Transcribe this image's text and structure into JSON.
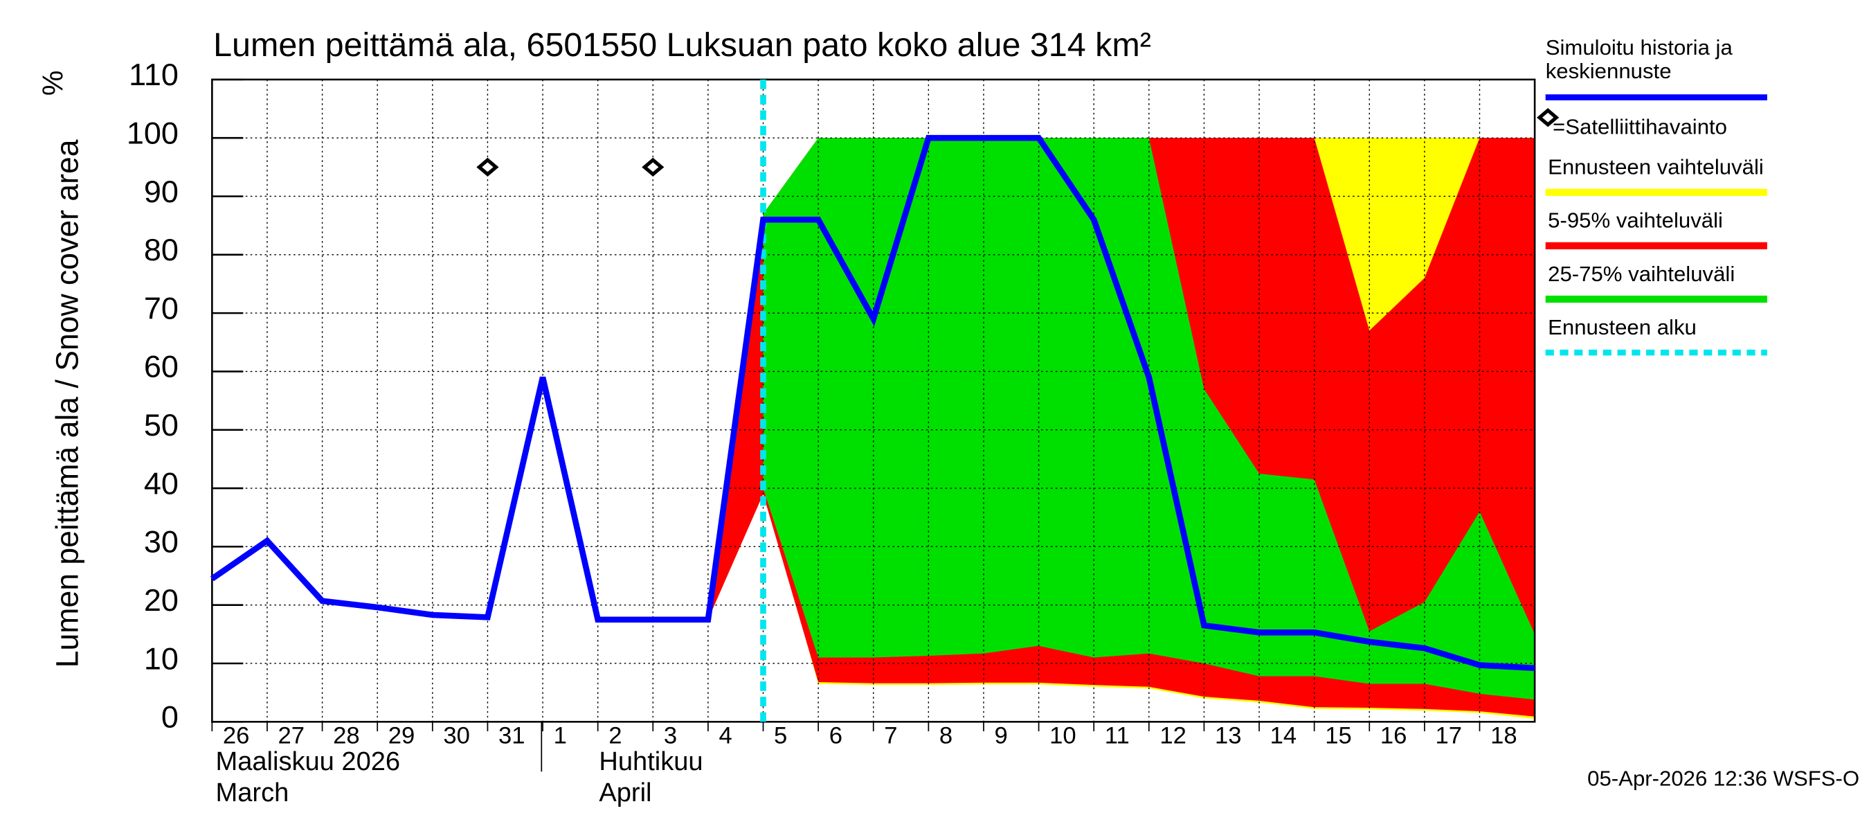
{
  "chart_data": {
    "type": "area",
    "title": "Lumen peittämä ala, 6501550 Luksuan pato koko alue 314 km²",
    "y_label": "Lumen peittämä ala / Snow cover area",
    "y_unit": "%",
    "month_labels": [
      "Maaliskuu 2026",
      "March",
      "Huhtikuu",
      "April"
    ],
    "footer": "05-Apr-2026 12:36 WSFS-O",
    "x": [
      "2026-03-26",
      "2026-03-27",
      "2026-03-28",
      "2026-03-29",
      "2026-03-30",
      "2026-03-31",
      "2026-04-01",
      "2026-04-02",
      "2026-04-03",
      "2026-04-04",
      "2026-04-05",
      "2026-04-06",
      "2026-04-07",
      "2026-04-08",
      "2026-04-09",
      "2026-04-10",
      "2026-04-11",
      "2026-04-12",
      "2026-04-13",
      "2026-04-14",
      "2026-04-15",
      "2026-04-16",
      "2026-04-17",
      "2026-04-18",
      "2026-04-19"
    ],
    "xlim": [
      "2026-03-26",
      "2026-04-19"
    ],
    "xticks": [
      {
        "value": "2026-03-26",
        "label": "26"
      },
      {
        "value": "2026-03-27",
        "label": "27"
      },
      {
        "value": "2026-03-28",
        "label": "28"
      },
      {
        "value": "2026-03-29",
        "label": "29"
      },
      {
        "value": "2026-03-30",
        "label": "30"
      },
      {
        "value": "2026-03-31",
        "label": "31"
      },
      {
        "value": "2026-04-01",
        "label": "1"
      },
      {
        "value": "2026-04-02",
        "label": "2"
      },
      {
        "value": "2026-04-03",
        "label": "3"
      },
      {
        "value": "2026-04-04",
        "label": "4"
      },
      {
        "value": "2026-04-05",
        "label": "5"
      },
      {
        "value": "2026-04-06",
        "label": "6"
      },
      {
        "value": "2026-04-07",
        "label": "7"
      },
      {
        "value": "2026-04-08",
        "label": "8"
      },
      {
        "value": "2026-04-09",
        "label": "9"
      },
      {
        "value": "2026-04-10",
        "label": "10"
      },
      {
        "value": "2026-04-11",
        "label": "11"
      },
      {
        "value": "2026-04-12",
        "label": "12"
      },
      {
        "value": "2026-04-13",
        "label": "13"
      },
      {
        "value": "2026-04-14",
        "label": "14"
      },
      {
        "value": "2026-04-15",
        "label": "15"
      },
      {
        "value": "2026-04-16",
        "label": "16"
      },
      {
        "value": "2026-04-17",
        "label": "17"
      },
      {
        "value": "2026-04-18",
        "label": "18"
      }
    ],
    "ylim": [
      0,
      110
    ],
    "yticks": [
      0,
      10,
      20,
      30,
      40,
      50,
      60,
      70,
      80,
      90,
      100,
      110
    ],
    "grid": true,
    "forecast_start": {
      "name": "Ennusteen alku",
      "x": "2026-04-05",
      "color": "#00e5ee"
    },
    "series": [
      {
        "name": "Ennusteen vaihteluväli",
        "kind": "band",
        "color": "#ffff00",
        "upper": [
          null,
          null,
          null,
          null,
          null,
          null,
          null,
          null,
          null,
          17.5,
          87,
          100,
          100,
          100,
          100,
          100,
          100,
          100,
          100,
          100,
          100,
          100,
          100,
          100,
          100
        ],
        "lower": [
          null,
          null,
          null,
          null,
          null,
          null,
          null,
          null,
          null,
          17.5,
          40,
          6.5,
          6.3,
          6.3,
          6.4,
          6.4,
          6.0,
          5.7,
          4.0,
          3.3,
          2.2,
          2.1,
          1.9,
          1.5,
          0.5
        ]
      },
      {
        "name": "5-95% vaihteluväli",
        "kind": "band",
        "color": "#ff0000",
        "upper": [
          null,
          null,
          null,
          null,
          null,
          null,
          null,
          null,
          null,
          17.5,
          87,
          100,
          100,
          100,
          100,
          100,
          100,
          100,
          100,
          100,
          100,
          67,
          76,
          100,
          100
        ],
        "lower": [
          null,
          null,
          null,
          null,
          null,
          null,
          null,
          null,
          null,
          17.5,
          39,
          6.8,
          6.6,
          6.6,
          6.7,
          6.7,
          6.3,
          6.0,
          4.3,
          3.6,
          2.5,
          2.4,
          2.2,
          1.8,
          0.9
        ]
      },
      {
        "name": "25-75% vaihteluväli",
        "kind": "band",
        "color": "#00e000",
        "upper": [
          null,
          null,
          null,
          null,
          null,
          null,
          null,
          null,
          null,
          null,
          87,
          100,
          100,
          100,
          100,
          100,
          100,
          100,
          57,
          42.5,
          41.5,
          15.5,
          20.5,
          36,
          15
        ],
        "lower": [
          null,
          null,
          null,
          null,
          null,
          null,
          null,
          null,
          null,
          null,
          40,
          11,
          11,
          11.3,
          11.7,
          13,
          11,
          11.7,
          10,
          7.8,
          7.8,
          6.5,
          6.5,
          4.8,
          3.8
        ]
      },
      {
        "name": "Simuloitu historia ja keskiennuste",
        "kind": "line",
        "color": "#0000ff",
        "values": [
          24.5,
          31,
          20.7,
          19.6,
          18.3,
          17.9,
          59,
          17.5,
          17.5,
          17.5,
          86,
          86,
          69,
          100,
          100,
          100,
          86,
          59,
          16.5,
          15.3,
          15.3,
          13.7,
          12.6,
          9.7,
          9.2
        ]
      },
      {
        "name": "=Satelliittihavainto",
        "kind": "points",
        "color": "#000000",
        "values": [
          null,
          null,
          null,
          null,
          null,
          95,
          null,
          null,
          95,
          null,
          null,
          null,
          null,
          null,
          null,
          null,
          null,
          null,
          null,
          null,
          null,
          null,
          null,
          null,
          null
        ]
      }
    ]
  }
}
